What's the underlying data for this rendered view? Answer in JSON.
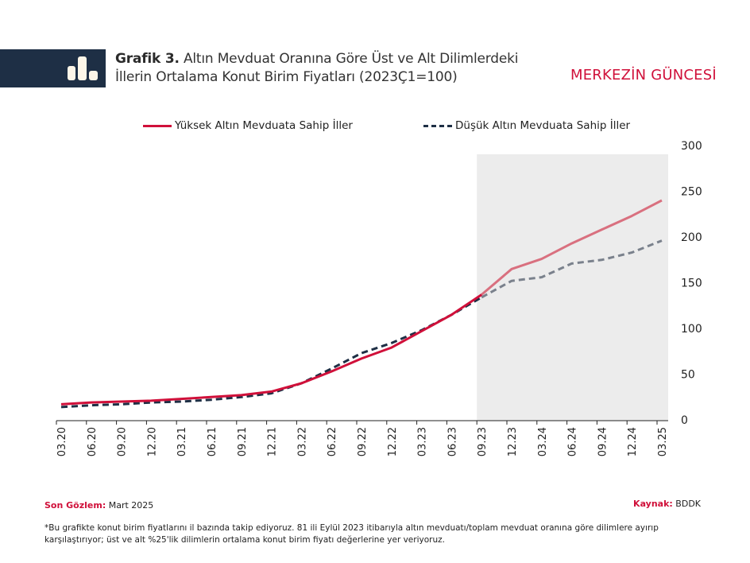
{
  "header": {
    "title_bold": "Grafik 3.",
    "title_line1": "Altın Mevduat Oranına Göre Üst ve Alt Dilimlerdeki",
    "title_line2": "İllerin Ortalama Konut Birim Fiyatları (2023Ç1=100)",
    "brand": "MERKEZİN GÜNCESİ",
    "icon": "bar-chart-icon"
  },
  "colors": {
    "header_bg": "#1e2f45",
    "accent": "#d0103a",
    "series_high": "#d0103a",
    "series_low": "#1e2f45",
    "series_high_shaded": "#d9707f",
    "series_low_shaded": "#7a818c",
    "shade": "#ececec"
  },
  "chart_data": {
    "type": "line",
    "title": "Altın Mevduat Oranına Göre Üst ve Alt Dilimlerdeki İllerin Ortalama Konut Birim Fiyatları (2023Ç1=100)",
    "xlabel": "",
    "ylabel": "",
    "ylim": [
      0,
      300
    ],
    "yticks": [
      0,
      50,
      100,
      150,
      200,
      250,
      300
    ],
    "y_axis_position": "right",
    "legend_position": "top",
    "grid": false,
    "shaded_region": {
      "from": "09.23",
      "to": "03.25"
    },
    "categories": [
      "03.20",
      "06.20",
      "09.20",
      "12.20",
      "03.21",
      "06.21",
      "09.21",
      "12.21",
      "03.22",
      "06.22",
      "09.22",
      "12.22",
      "03.23",
      "06.23",
      "09.23",
      "12.23",
      "03.24",
      "06.24",
      "09.24",
      "12.24",
      "03.25"
    ],
    "series": [
      {
        "name": "Yüksek Altın Mevduata Sahip İller",
        "style": "solid",
        "values": [
          17,
          19,
          20,
          21,
          23,
          25,
          27,
          31,
          40,
          53,
          67,
          79,
          97,
          115,
          137,
          165,
          176,
          193,
          208,
          223,
          240
        ]
      },
      {
        "name": "Düşük Altın Mevduata Sahip İller",
        "style": "dashed",
        "values": [
          14,
          16,
          17,
          19,
          20,
          22,
          25,
          29,
          40,
          56,
          73,
          84,
          98,
          115,
          134,
          152,
          156,
          171,
          175,
          183,
          196
        ]
      }
    ]
  },
  "footer": {
    "last_obs_label": "Son Gözlem:",
    "last_obs_value": "Mart 2025",
    "source_label": "Kaynak:",
    "source_value": "BDDK",
    "note": "*Bu grafikte konut birim fiyatlarını il bazında takip ediyoruz. 81 ili Eylül 2023 itibarıyla altın mevduatı/toplam mevduat oranına göre dilimlere ayırıp karşılaştırıyor; üst ve alt %25'lik dilimlerin ortalama konut birim fiyatı değerlerine yer veriyoruz."
  }
}
